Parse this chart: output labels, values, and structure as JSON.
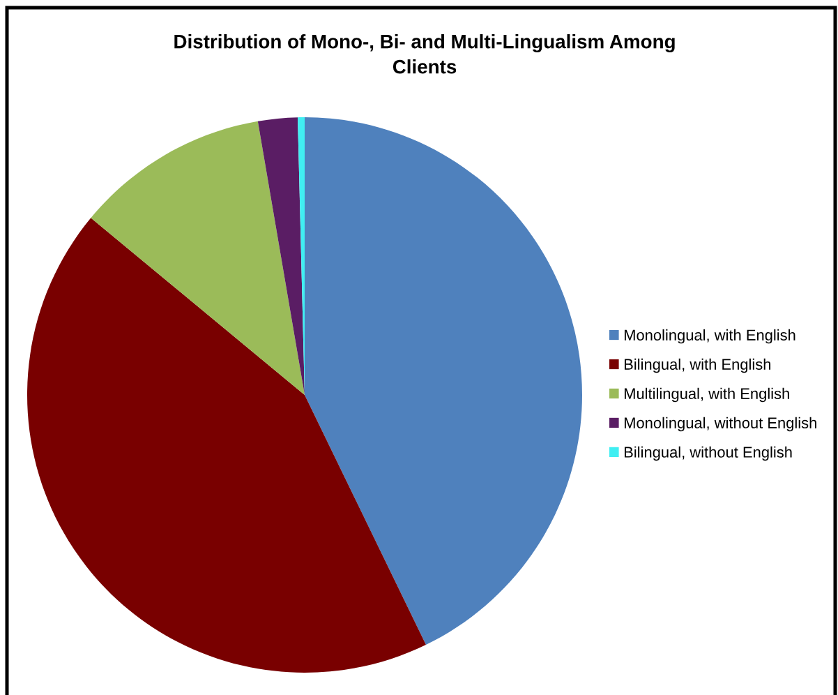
{
  "chart_data": {
    "type": "pie",
    "title": "Distribution of Mono-, Bi- and Multi-Lingualism Among Clients",
    "categories": [
      "Monolingual, with English",
      "Bilingual, with English",
      "Multilingual, with English",
      "Monolingual, without English",
      "Bilingual, without English"
    ],
    "values": [
      42.8,
      43.2,
      11.3,
      2.3,
      0.4
    ],
    "colors": [
      "#4f81bd",
      "#790000",
      "#9bbb59",
      "#5a1d64",
      "#40eef2"
    ],
    "legend": "right"
  }
}
